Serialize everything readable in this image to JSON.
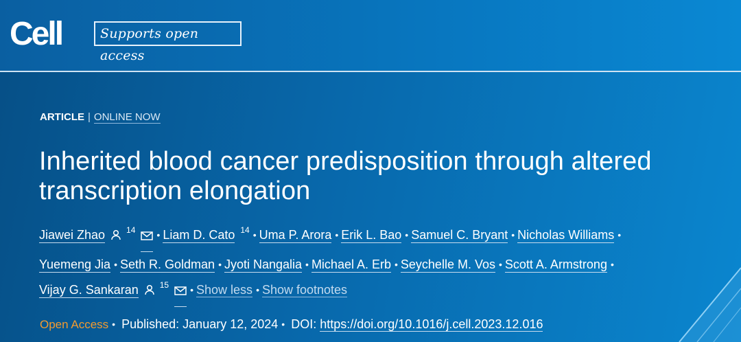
{
  "header": {
    "logo": "Cell",
    "open_access_badge": "Supports open access"
  },
  "article": {
    "type": "ARTICLE",
    "separator": "|",
    "status": "ONLINE NOW",
    "title": "Inherited blood cancer predisposition through altered transcription elongation"
  },
  "authors": [
    {
      "name": "Jiawei Zhao",
      "person_icon": true,
      "sup": "14",
      "mail_icon": true
    },
    {
      "name": "Liam D. Cato",
      "sup": "14"
    },
    {
      "name": "Uma P. Arora"
    },
    {
      "name": "Erik L. Bao"
    },
    {
      "name": "Samuel C. Bryant"
    },
    {
      "name": "Nicholas Williams"
    },
    {
      "name": "Yuemeng Jia"
    },
    {
      "name": "Seth R. Goldman"
    },
    {
      "name": "Jyoti Nangalia"
    },
    {
      "name": "Michael A. Erb"
    },
    {
      "name": "Seychelle M. Vos"
    },
    {
      "name": "Scott A. Armstrong"
    },
    {
      "name": "Vijay G. Sankaran",
      "person_icon": true,
      "sup": "15",
      "mail_icon": true
    }
  ],
  "author_actions": {
    "show_less": "Show less",
    "show_footnotes": "Show footnotes"
  },
  "publication": {
    "open_access": "Open Access",
    "published_label": "Published:",
    "published_date": "January 12, 2024",
    "doi_label": "DOI:",
    "doi_url": "https://doi.org/10.1016/j.cell.2023.12.016"
  },
  "colors": {
    "background_dark": "#064f86",
    "background_light": "#0a86cf",
    "open_access_orange": "#f39b2f"
  }
}
